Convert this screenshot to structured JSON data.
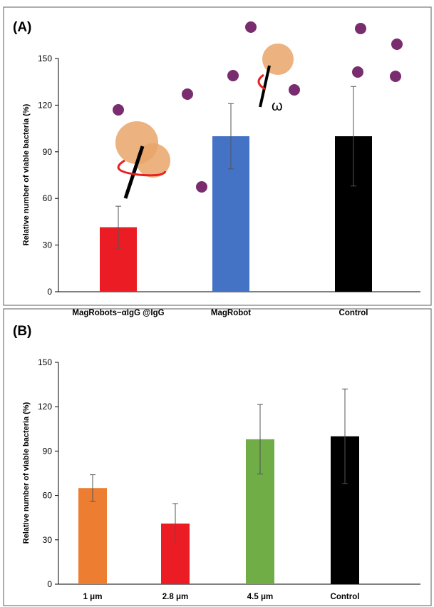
{
  "chart_data": [
    {
      "type": "bar",
      "panel_label": "(A)",
      "y_label": "Relative number of viable bacteria (%)",
      "categories": [
        "MagRobots−αIgG @IgG",
        "MagRobot",
        "Control"
      ],
      "values": [
        41.5,
        100,
        100
      ],
      "errors": [
        13.5,
        21,
        32
      ],
      "colors": [
        "#ec1c24",
        "#4472c4",
        "#000000"
      ],
      "ylim": [
        0,
        150
      ],
      "yticks": [
        0,
        30,
        60,
        90,
        120,
        150
      ],
      "annotations": [
        "ω"
      ]
    },
    {
      "type": "bar",
      "panel_label": "(B)",
      "y_label": "Relative number of viable bacteria (%)",
      "categories": [
        "1 μm",
        "2.8 μm",
        "4.5 μm",
        "Control"
      ],
      "values": [
        65,
        41,
        98,
        100
      ],
      "errors": [
        9,
        13.5,
        23.5,
        32
      ],
      "colors": [
        "#ed7d31",
        "#ec1c24",
        "#70ad47",
        "#000000"
      ],
      "ylim": [
        0,
        150
      ],
      "yticks": [
        0,
        30,
        60,
        90,
        120,
        150
      ]
    }
  ]
}
